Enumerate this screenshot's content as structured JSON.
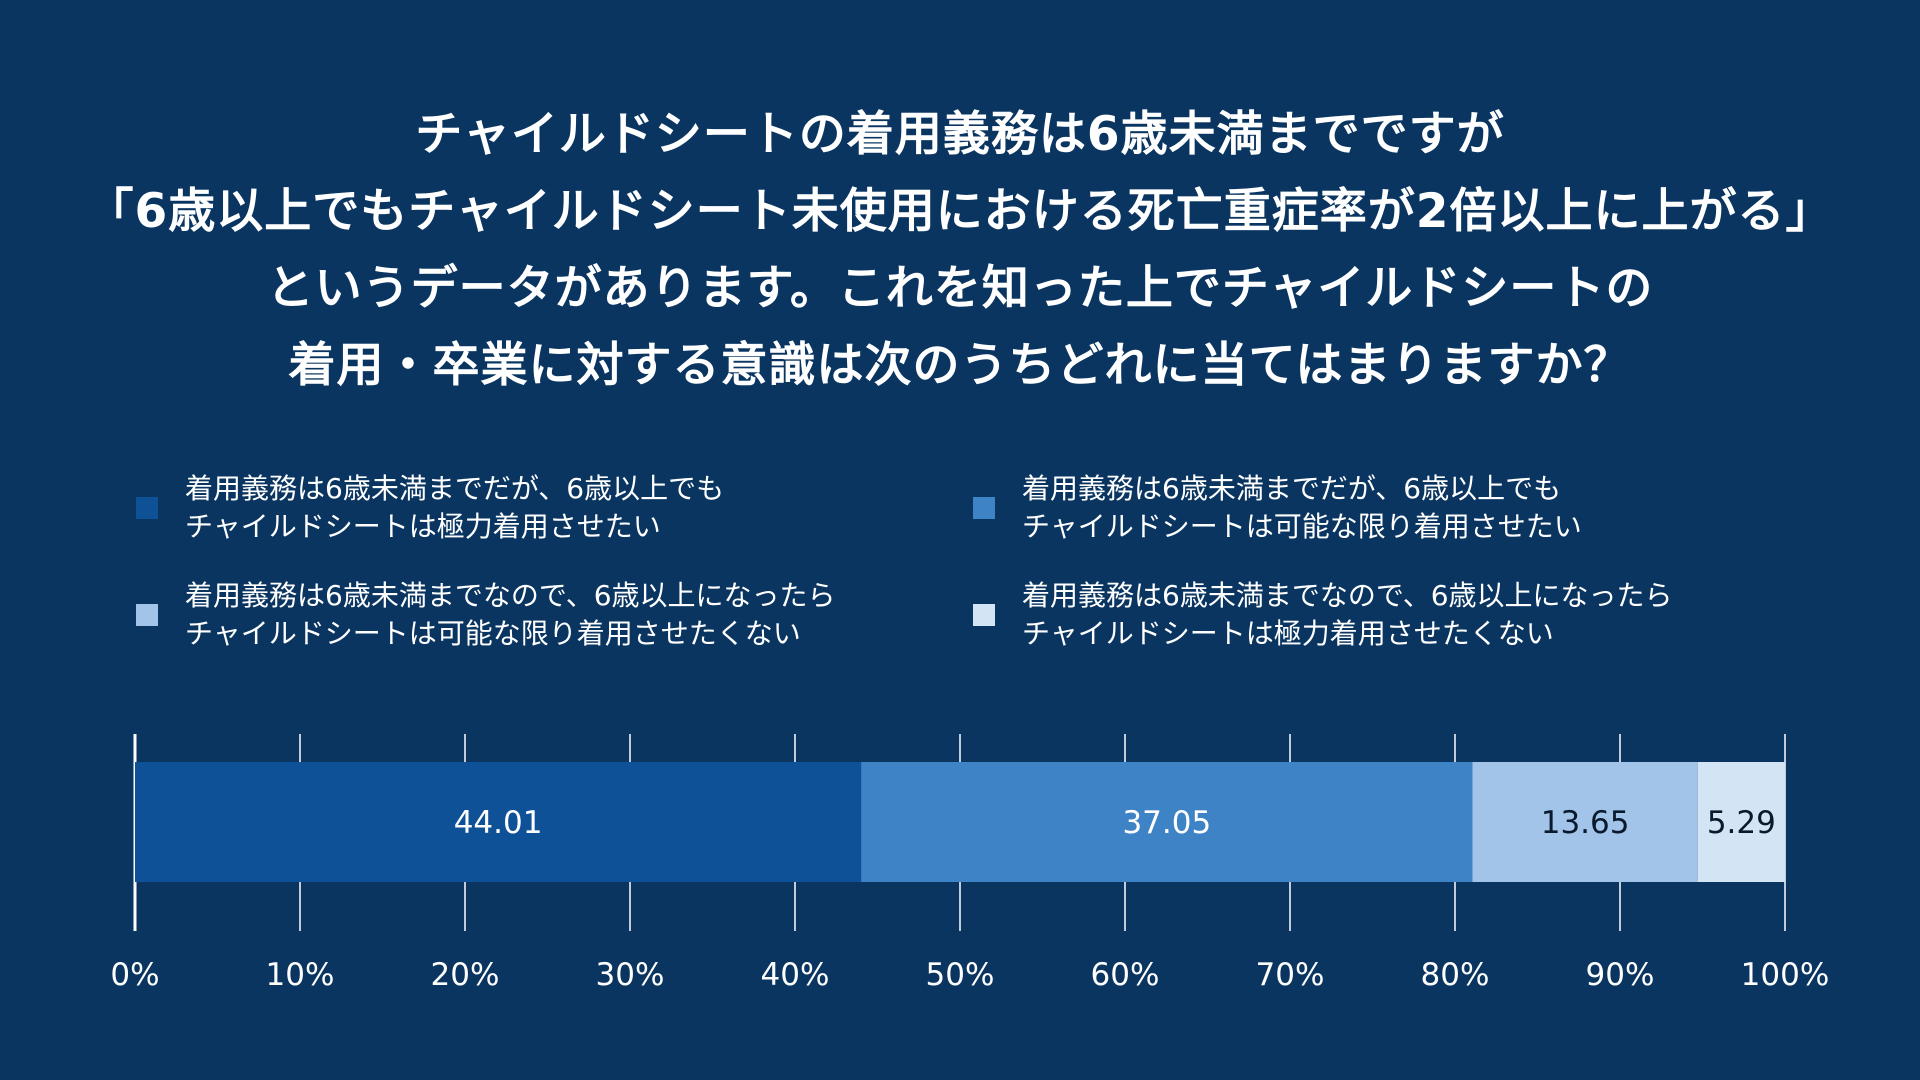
{
  "title_lines": [
    "チャイルドシートの着用義務は6歳未満までですが",
    "「6歳以上でもチャイルドシート未使用における死亡重症率が2倍以上に上がる」",
    "というデータがあります。これを知った上でチャイルドシートの",
    "着用・卒業に対する意識は次のうちどれに当てはまりますか？"
  ],
  "legend": [
    {
      "lines": [
        "着用義務は6歳未満までだが、6歳以上でも",
        "チャイルドシートは極力着用させたい"
      ],
      "color": "#0f5196"
    },
    {
      "lines": [
        "着用義務は6歳未満までだが、6歳以上でも",
        "チャイルドシートは可能な限り着用させたい"
      ],
      "color": "#3f83c7"
    },
    {
      "lines": [
        "着用義務は6歳未満までなので、6歳以上になったら",
        "チャイルドシートは可能な限り着用させたくない"
      ],
      "color": "#a1c4e8"
    },
    {
      "lines": [
        "着用義務は6歳未満までなので、6歳以上になったら",
        "チャイルドシートは極力着用させたくない"
      ],
      "color": "#d3e4f5"
    }
  ],
  "chart_data": {
    "type": "bar",
    "orientation": "horizontal-stacked-100",
    "series": [
      {
        "name": "着用義務は6歳未満までだが、6歳以上でもチャイルドシートは極力着用させたい",
        "values": [
          44.01
        ],
        "color": "#0f5196",
        "label_color": "#ffffff"
      },
      {
        "name": "着用義務は6歳未満までだが、6歳以上でもチャイルドシートは可能な限り着用させたい",
        "values": [
          37.05
        ],
        "color": "#3f83c7",
        "label_color": "#ffffff"
      },
      {
        "name": "着用義務は6歳未満までなので、6歳以上になったらチャイルドシートは可能な限り着用させたくない",
        "values": [
          13.65
        ],
        "color": "#a1c4e8",
        "label_color": "#0a1a2e"
      },
      {
        "name": "着用義務は6歳未満までなので、6歳以上になったらチャイルドシートは極力着用させたくない",
        "values": [
          5.29
        ],
        "color": "#d3e4f5",
        "label_color": "#0a1a2e"
      }
    ],
    "data_labels": [
      "44.01",
      "37.05",
      "13.65",
      "5.29"
    ],
    "xlim": [
      0,
      100
    ],
    "xticks": [
      "0%",
      "10%",
      "20%",
      "30%",
      "40%",
      "50%",
      "60%",
      "70%",
      "80%",
      "90%",
      "100%"
    ],
    "grid": true,
    "legend_position": "top"
  }
}
